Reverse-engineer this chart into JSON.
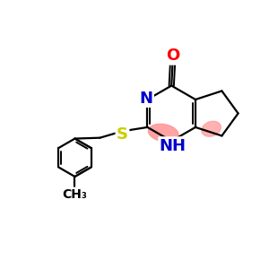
{
  "background_color": "#ffffff",
  "bond_color": "#000000",
  "atom_colors": {
    "O": "#ff0000",
    "N": "#0000cc",
    "S": "#cccc00",
    "C": "#000000"
  },
  "highlight_color": "#ff9999",
  "lw_single": 1.6,
  "lw_double": 1.4,
  "font_size_atoms": 13,
  "font_size_small": 11
}
